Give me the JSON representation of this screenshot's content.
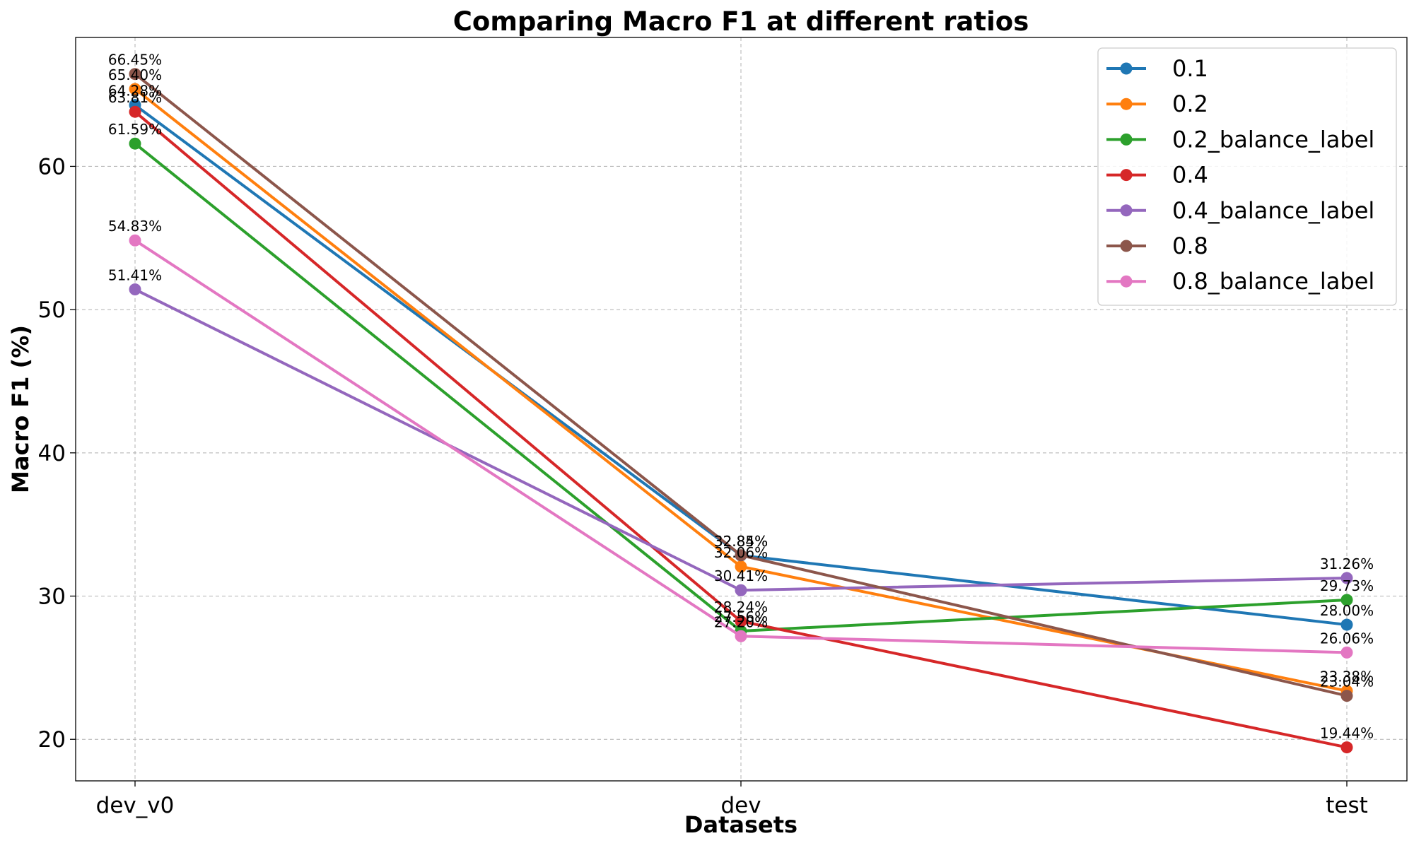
{
  "chart_data": {
    "type": "line",
    "title": "Comparing Macro F1 at different ratios",
    "xlabel": "Datasets",
    "ylabel": "Macro F1 (%)",
    "categories": [
      "dev_v0",
      "dev",
      "test"
    ],
    "ylim": [
      17.1,
      69.0
    ],
    "yticks": [
      20,
      30,
      40,
      50,
      60
    ],
    "grid": true,
    "legend_position": "top-right",
    "label_suffix": "%",
    "series": [
      {
        "name": "0.1",
        "color": "#1f77b4",
        "values": [
          64.28,
          32.84,
          28.0
        ]
      },
      {
        "name": "0.2",
        "color": "#ff7f0e",
        "values": [
          65.4,
          32.06,
          23.38
        ]
      },
      {
        "name": "0.2_balance_label",
        "color": "#2ca02c",
        "values": [
          61.59,
          27.56,
          29.73
        ]
      },
      {
        "name": "0.4",
        "color": "#d62728",
        "values": [
          63.81,
          28.24,
          19.44
        ]
      },
      {
        "name": "0.4_balance_label",
        "color": "#9467bd",
        "values": [
          51.41,
          30.41,
          31.26
        ]
      },
      {
        "name": "0.8",
        "color": "#8c564b",
        "values": [
          66.45,
          32.85,
          23.04
        ]
      },
      {
        "name": "0.8_balance_label",
        "color": "#e377c2",
        "values": [
          54.83,
          27.2,
          26.06
        ]
      }
    ]
  }
}
